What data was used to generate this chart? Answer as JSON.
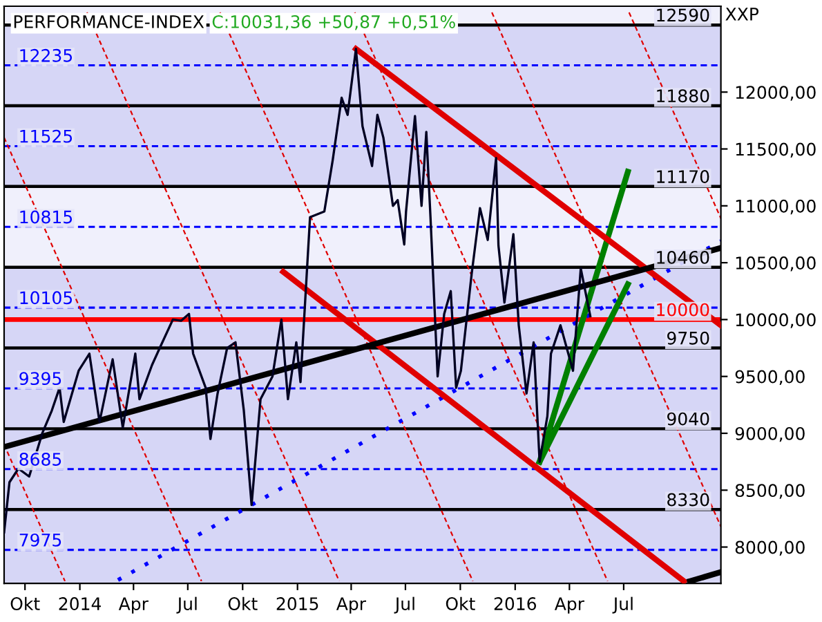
{
  "chart_data": {
    "type": "line",
    "title": "PERFORMANCE-INDEX",
    "subtitle": "C:10031,36 +50,87 +0,51%",
    "ylabel": "XXP",
    "xlim": [
      "2013-08-27",
      "2016-12-11"
    ],
    "ylim": [
      7680,
      12755
    ],
    "xticks": [
      {
        "value": "2013-10-01",
        "label": "Okt"
      },
      {
        "value": "2014-01-01",
        "label": "2014"
      },
      {
        "value": "2014-04-01",
        "label": "Apr"
      },
      {
        "value": "2014-07-01",
        "label": "Jul"
      },
      {
        "value": "2014-10-01",
        "label": "Okt"
      },
      {
        "value": "2015-01-01",
        "label": "2015"
      },
      {
        "value": "2015-04-01",
        "label": "Apr"
      },
      {
        "value": "2015-07-01",
        "label": "Jul"
      },
      {
        "value": "2015-10-01",
        "label": "Okt"
      },
      {
        "value": "2016-01-01",
        "label": "2016"
      },
      {
        "value": "2016-04-01",
        "label": "Apr"
      },
      {
        "value": "2016-07-01",
        "label": "Jul"
      }
    ],
    "yticks": [
      {
        "value": 8000,
        "label": "8000,00"
      },
      {
        "value": 8500,
        "label": "8500,00"
      },
      {
        "value": 9000,
        "label": "9000,00"
      },
      {
        "value": 9500,
        "label": "9500,00"
      },
      {
        "value": 10000,
        "label": "10000,00"
      },
      {
        "value": 10500,
        "label": "10500,00"
      },
      {
        "value": 11000,
        "label": "11000,00"
      },
      {
        "value": 11500,
        "label": "11500,00"
      },
      {
        "value": 12000,
        "label": "12000,00"
      }
    ],
    "grid": false,
    "legend": false,
    "bands": [
      {
        "axis": "y",
        "from": 11880,
        "to": 12590,
        "color": "#d6d6f6"
      },
      {
        "axis": "y",
        "from": 11170,
        "to": 11880,
        "color": "#d6d6f6"
      },
      {
        "axis": "y",
        "from": 9750,
        "to": 10460,
        "color": "#d6d6f6"
      },
      {
        "axis": "y",
        "from": 9040,
        "to": 9750,
        "color": "#d6d6f6"
      },
      {
        "axis": "y",
        "from": 8330,
        "to": 9040,
        "color": "#d6d6f6"
      },
      {
        "axis": "y",
        "from": 7680,
        "to": 8330,
        "color": "#d6d6f6"
      }
    ],
    "ref_lines": [
      {
        "axis": "y",
        "value": 12590,
        "label": "12590",
        "color": "#000000",
        "line_style": "solid"
      },
      {
        "axis": "y",
        "value": 11880,
        "label": "11880",
        "color": "#000000",
        "line_style": "solid"
      },
      {
        "axis": "y",
        "value": 11170,
        "label": "11170",
        "color": "#000000",
        "line_style": "solid"
      },
      {
        "axis": "y",
        "value": 10460,
        "label": "10460",
        "color": "#000000",
        "line_style": "solid"
      },
      {
        "axis": "y",
        "value": 9750,
        "label": "9750",
        "color": "#000000",
        "line_style": "solid"
      },
      {
        "axis": "y",
        "value": 9040,
        "label": "9040",
        "color": "#000000",
        "line_style": "solid"
      },
      {
        "axis": "y",
        "value": 8330,
        "label": "8330",
        "color": "#000000",
        "line_style": "solid"
      },
      {
        "axis": "y",
        "value": 12235,
        "label": "12235",
        "color": "#0000ff",
        "line_style": "dashed"
      },
      {
        "axis": "y",
        "value": 11525,
        "label": "11525",
        "color": "#0000ff",
        "line_style": "dashed"
      },
      {
        "axis": "y",
        "value": 10815,
        "label": "10815",
        "color": "#0000ff",
        "line_style": "dashed"
      },
      {
        "axis": "y",
        "value": 10105,
        "label": "10105",
        "color": "#0000ff",
        "line_style": "dashed"
      },
      {
        "axis": "y",
        "value": 9395,
        "label": "9395",
        "color": "#0000ff",
        "line_style": "dashed"
      },
      {
        "axis": "y",
        "value": 8685,
        "label": "8685",
        "color": "#0000ff",
        "line_style": "dashed"
      },
      {
        "axis": "y",
        "value": 7975,
        "label": "7975",
        "color": "#0000ff",
        "line_style": "dashed"
      },
      {
        "axis": "y",
        "value": 10000,
        "label": "10000",
        "color": "#ff0000",
        "line_style": "solid"
      }
    ],
    "series": [
      {
        "color": "#e00000",
        "line_style": "dashed",
        "x": [
          "2013-08-27",
          "2013-12-07"
        ],
        "values": [
          8900,
          7700
        ]
      },
      {
        "color": "#e00000",
        "line_style": "dashed",
        "x": [
          "2013-08-27",
          "2014-07-24"
        ],
        "values": [
          11600,
          7700
        ]
      },
      {
        "color": "#e00000",
        "line_style": "dashed",
        "x": [
          "2014-01-13",
          "2015-03-12"
        ],
        "values": [
          12700,
          7700
        ]
      },
      {
        "color": "#e00000",
        "line_style": "dashed",
        "x": [
          "2014-08-24",
          "2015-10-22"
        ],
        "values": [
          12700,
          7700
        ]
      },
      {
        "color": "#e00000",
        "line_style": "dashed",
        "x": [
          "2015-04-07",
          "2016-06-04"
        ],
        "values": [
          12700,
          7700
        ]
      },
      {
        "color": "#e00000",
        "line_style": "dashed",
        "x": [
          "2015-11-23",
          "2016-12-11"
        ],
        "values": [
          12700,
          8180
        ]
      },
      {
        "color": "#e00000",
        "line_style": "dashed",
        "x": [
          "2016-07-10",
          "2016-12-11"
        ],
        "values": [
          12700,
          10890
        ]
      },
      {
        "color": "#0000ff",
        "line_style": "dotted",
        "x": [
          "2014-03-06",
          "2016-12-11"
        ],
        "values": [
          7710,
          10690
        ]
      },
      {
        "color": "#008000",
        "line_style": "solid",
        "x": [
          "2016-02-11",
          "2016-07-08"
        ],
        "values": [
          8750,
          11300
        ]
      },
      {
        "color": "#008000",
        "line_style": "solid",
        "x": [
          "2016-02-11",
          "2016-07-08"
        ],
        "values": [
          8750,
          10310
        ]
      },
      {
        "color": "#000022",
        "line_style": "solid",
        "x": [
          "2013-08-27",
          "2013-09-05",
          "2013-09-20",
          "2013-10-08",
          "2013-10-30",
          "2013-11-15",
          "2013-11-28",
          "2013-12-05",
          "2013-12-30",
          "2014-01-17",
          "2014-02-03",
          "2014-02-25",
          "2014-03-14",
          "2014-04-04",
          "2014-04-11",
          "2014-05-02",
          "2014-05-15",
          "2014-06-06",
          "2014-06-20",
          "2014-07-03",
          "2014-07-10",
          "2014-07-31",
          "2014-08-08",
          "2014-08-20",
          "2014-09-05",
          "2014-09-19",
          "2014-10-03",
          "2014-10-16",
          "2014-10-31",
          "2014-11-20",
          "2014-12-05",
          "2014-12-16",
          "2014-12-30",
          "2015-01-06",
          "2015-01-22",
          "2015-02-15",
          "2015-03-01",
          "2015-03-16",
          "2015-03-26",
          "2015-04-09",
          "2015-04-20",
          "2015-05-06",
          "2015-05-15",
          "2015-05-25",
          "2015-06-10",
          "2015-06-18",
          "2015-06-29",
          "2015-07-02",
          "2015-07-17",
          "2015-07-28",
          "2015-08-05",
          "2015-08-12",
          "2015-08-24",
          "2015-09-04",
          "2015-09-15",
          "2015-09-24",
          "2015-10-02",
          "2015-10-20",
          "2015-11-03",
          "2015-11-16",
          "2015-11-30",
          "2015-12-04",
          "2015-12-14",
          "2015-12-29",
          "2016-01-07",
          "2016-01-20",
          "2016-02-01",
          "2016-02-11",
          "2016-02-24",
          "2016-03-01",
          "2016-03-17",
          "2016-04-07",
          "2016-04-20",
          "2016-05-06"
        ],
        "values": [
          8130,
          8570,
          8690,
          8620,
          9000,
          9200,
          9400,
          9100,
          9550,
          9700,
          9100,
          9650,
          9050,
          9700,
          9300,
          9600,
          9750,
          10000,
          9990,
          10050,
          9700,
          9400,
          8950,
          9350,
          9750,
          9800,
          9200,
          8370,
          9300,
          9500,
          10000,
          9300,
          9800,
          9450,
          10900,
          10950,
          11400,
          11950,
          11800,
          12380,
          11700,
          11350,
          11800,
          11600,
          11000,
          11050,
          10660,
          10950,
          11790,
          11000,
          11650,
          10900,
          9500,
          10050,
          10250,
          9400,
          9550,
          10400,
          10980,
          10700,
          11420,
          10650,
          10150,
          10750,
          9950,
          9350,
          9800,
          8750,
          9150,
          9700,
          9950,
          9550,
          10450,
          10030
        ]
      },
      {
        "color": "#e00000",
        "line_style": "solid",
        "x": [
          "2015-04-09",
          "2016-12-11"
        ],
        "values": [
          12380,
          9950
        ]
      },
      {
        "color": "#e00000",
        "line_style": "solid",
        "x": [
          "2014-12-08",
          "2016-10-10"
        ],
        "values": [
          10420,
          7700
        ]
      },
      {
        "color": "#000000",
        "line_style": "solid",
        "x": [
          "2013-08-27",
          "2016-12-11"
        ],
        "values": [
          8880,
          10630
        ]
      },
      {
        "color": "#000000",
        "line_style": "solid",
        "x": [
          "2016-10-20",
          "2016-12-11"
        ],
        "values": [
          7700,
          7780
        ]
      }
    ]
  }
}
